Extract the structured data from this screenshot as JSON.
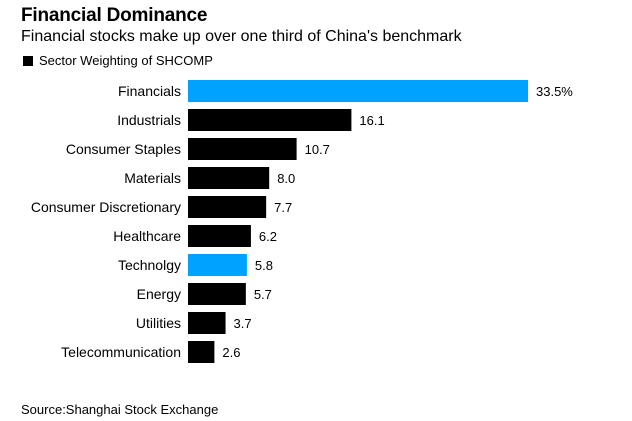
{
  "title": "Financial Dominance",
  "subtitle": "Financial stocks make up over one third of China's benchmark",
  "legend_label": "Sector Weighting of SHCOMP",
  "source": "Source:Shanghai Stock Exchange",
  "colors": {
    "default": "#000000",
    "highlight": "#00a2ff"
  },
  "chart_data": {
    "type": "bar",
    "orientation": "horizontal",
    "categories": [
      "Financials",
      "Industrials",
      "Consumer Staples",
      "Materials",
      "Consumer Discretionary",
      "Healthcare",
      "Technolgy",
      "Energy",
      "Utilities",
      "Telecommunication"
    ],
    "values": [
      33.5,
      16.1,
      10.7,
      8.0,
      7.7,
      6.2,
      5.8,
      5.7,
      3.7,
      2.6
    ],
    "value_labels": [
      "33.5%",
      "16.1",
      "10.7",
      "8.0",
      "7.7",
      "6.2",
      "5.8",
      "5.7",
      "3.7",
      "2.6"
    ],
    "highlighted": [
      "Financials",
      "Technolgy"
    ],
    "series": [
      {
        "name": "Sector Weighting of SHCOMP",
        "values": [
          33.5,
          16.1,
          10.7,
          8.0,
          7.7,
          6.2,
          5.8,
          5.7,
          3.7,
          2.6
        ]
      }
    ],
    "xlim": [
      0,
      33.5
    ],
    "grid": false,
    "legend_position": "top-left"
  }
}
